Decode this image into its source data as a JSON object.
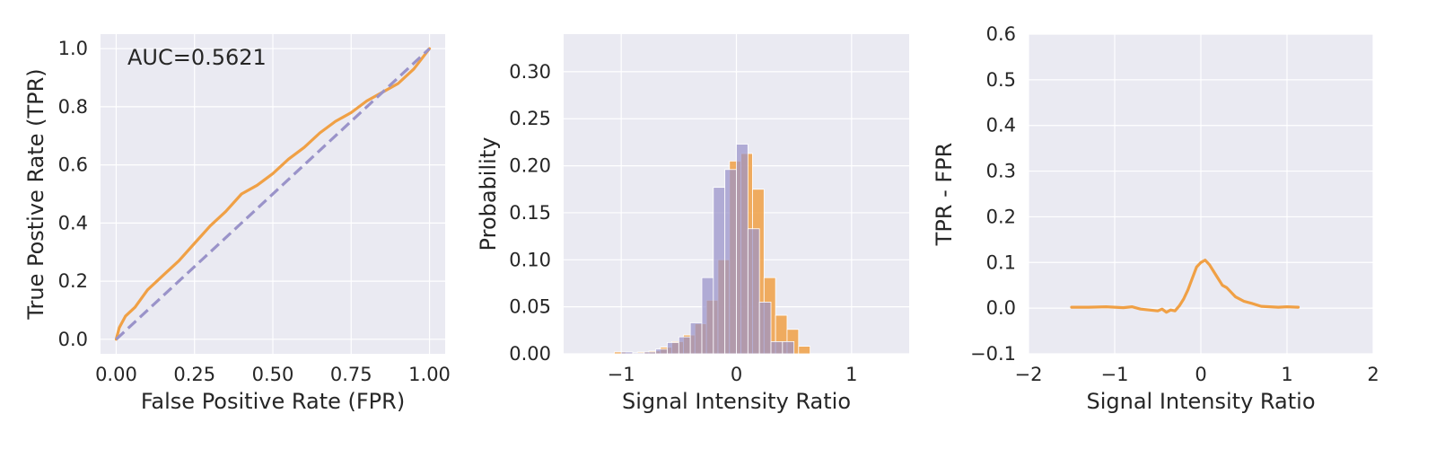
{
  "colors": {
    "orange": "#f0a045",
    "purple": "#9a93c9",
    "background": "#eaeaf2",
    "grid": "#ffffff"
  },
  "chart_data": [
    {
      "type": "line",
      "xlabel": "False Positive Rate (FPR)",
      "ylabel": "True Postive Rate (TPR)",
      "xlim": [
        -0.05,
        1.05
      ],
      "ylim": [
        -0.05,
        1.05
      ],
      "xticks": [
        0.0,
        0.25,
        0.5,
        0.75,
        1.0
      ],
      "xtick_labels": [
        "0.00",
        "0.25",
        "0.50",
        "0.75",
        "1.00"
      ],
      "yticks": [
        0.0,
        0.2,
        0.4,
        0.6,
        0.8,
        1.0
      ],
      "ytick_labels": [
        "0.0",
        "0.2",
        "0.4",
        "0.6",
        "0.8",
        "1.0"
      ],
      "annotation": "AUC=0.5621",
      "grid": true,
      "series": [
        {
          "color": "#f0a045",
          "style": "solid",
          "x": [
            0.0,
            0.01,
            0.03,
            0.06,
            0.1,
            0.15,
            0.2,
            0.25,
            0.3,
            0.35,
            0.4,
            0.45,
            0.5,
            0.55,
            0.6,
            0.65,
            0.7,
            0.75,
            0.8,
            0.85,
            0.9,
            0.95,
            1.0
          ],
          "y": [
            0.0,
            0.04,
            0.08,
            0.11,
            0.17,
            0.22,
            0.27,
            0.33,
            0.39,
            0.44,
            0.5,
            0.53,
            0.57,
            0.62,
            0.66,
            0.71,
            0.75,
            0.78,
            0.82,
            0.85,
            0.88,
            0.93,
            1.0
          ]
        },
        {
          "color": "#9a93c9",
          "style": "dashed",
          "x": [
            0.0,
            1.0
          ],
          "y": [
            0.0,
            1.0
          ]
        }
      ]
    },
    {
      "type": "bar",
      "xlabel": "Signal Intensity Ratio",
      "ylabel": "Probability",
      "xlim": [
        -1.5,
        1.5
      ],
      "ylim": [
        0.0,
        0.34
      ],
      "xticks": [
        -1,
        0,
        1
      ],
      "xtick_labels": [
        "−1",
        "0",
        "1"
      ],
      "yticks": [
        0.0,
        0.05,
        0.1,
        0.15,
        0.2,
        0.25,
        0.3
      ],
      "ytick_labels": [
        "0.00",
        "0.05",
        "0.10",
        "0.15",
        "0.20",
        "0.25",
        "0.30"
      ],
      "grid": true,
      "bin_width": 0.1,
      "series": [
        {
          "color": "#f0a045",
          "bin_starts": [
            -1.06,
            -0.96,
            -0.86,
            -0.76,
            -0.66,
            -0.56,
            -0.46,
            -0.36,
            -0.26,
            -0.16,
            -0.06,
            0.04,
            0.14,
            0.24,
            0.34,
            0.44,
            0.54
          ],
          "values": [
            0.002,
            0.001,
            0.002,
            0.003,
            0.007,
            0.013,
            0.02,
            0.032,
            0.057,
            0.1,
            0.205,
            0.213,
            0.175,
            0.081,
            0.041,
            0.026,
            0.008
          ]
        },
        {
          "color": "#9a93c9",
          "bin_starts": [
            -1.1,
            -1.0,
            -0.9,
            -0.8,
            -0.7,
            -0.6,
            -0.5,
            -0.4,
            -0.3,
            -0.2,
            -0.1,
            0.0,
            0.1,
            0.2,
            0.3,
            0.4,
            0.5
          ],
          "values": [
            0.0,
            0.002,
            0.001,
            0.002,
            0.005,
            0.012,
            0.018,
            0.033,
            0.081,
            0.177,
            0.196,
            0.223,
            0.133,
            0.055,
            0.013,
            0.013,
            0.0
          ]
        }
      ]
    },
    {
      "type": "line",
      "xlabel": "Signal Intensity Ratio",
      "ylabel": "TPR - FPR",
      "xlim": [
        -2,
        2
      ],
      "ylim": [
        -0.1,
        0.6
      ],
      "xticks": [
        -2,
        -1,
        0,
        1,
        2
      ],
      "xtick_labels": [
        "−2",
        "−1",
        "0",
        "1",
        "2"
      ],
      "yticks": [
        -0.1,
        0.0,
        0.1,
        0.2,
        0.3,
        0.4,
        0.5,
        0.6
      ],
      "ytick_labels": [
        "−0.1",
        "0.0",
        "0.1",
        "0.2",
        "0.3",
        "0.4",
        "0.5",
        "0.6"
      ],
      "grid": true,
      "series": [
        {
          "color": "#f0a045",
          "style": "solid",
          "x": [
            -1.5,
            -1.3,
            -1.1,
            -0.9,
            -0.8,
            -0.7,
            -0.6,
            -0.5,
            -0.45,
            -0.4,
            -0.35,
            -0.3,
            -0.25,
            -0.2,
            -0.15,
            -0.1,
            -0.05,
            0.0,
            0.05,
            0.1,
            0.15,
            0.2,
            0.25,
            0.3,
            0.35,
            0.4,
            0.5,
            0.6,
            0.7,
            0.8,
            0.9,
            1.0,
            1.13
          ],
          "y": [
            0.002,
            0.002,
            0.003,
            0.001,
            0.003,
            -0.002,
            -0.004,
            -0.006,
            -0.002,
            -0.009,
            -0.004,
            -0.006,
            0.005,
            0.02,
            0.04,
            0.065,
            0.09,
            0.1,
            0.105,
            0.095,
            0.08,
            0.065,
            0.05,
            0.045,
            0.035,
            0.025,
            0.015,
            0.01,
            0.004,
            0.003,
            0.002,
            0.003,
            0.002
          ]
        }
      ]
    }
  ]
}
